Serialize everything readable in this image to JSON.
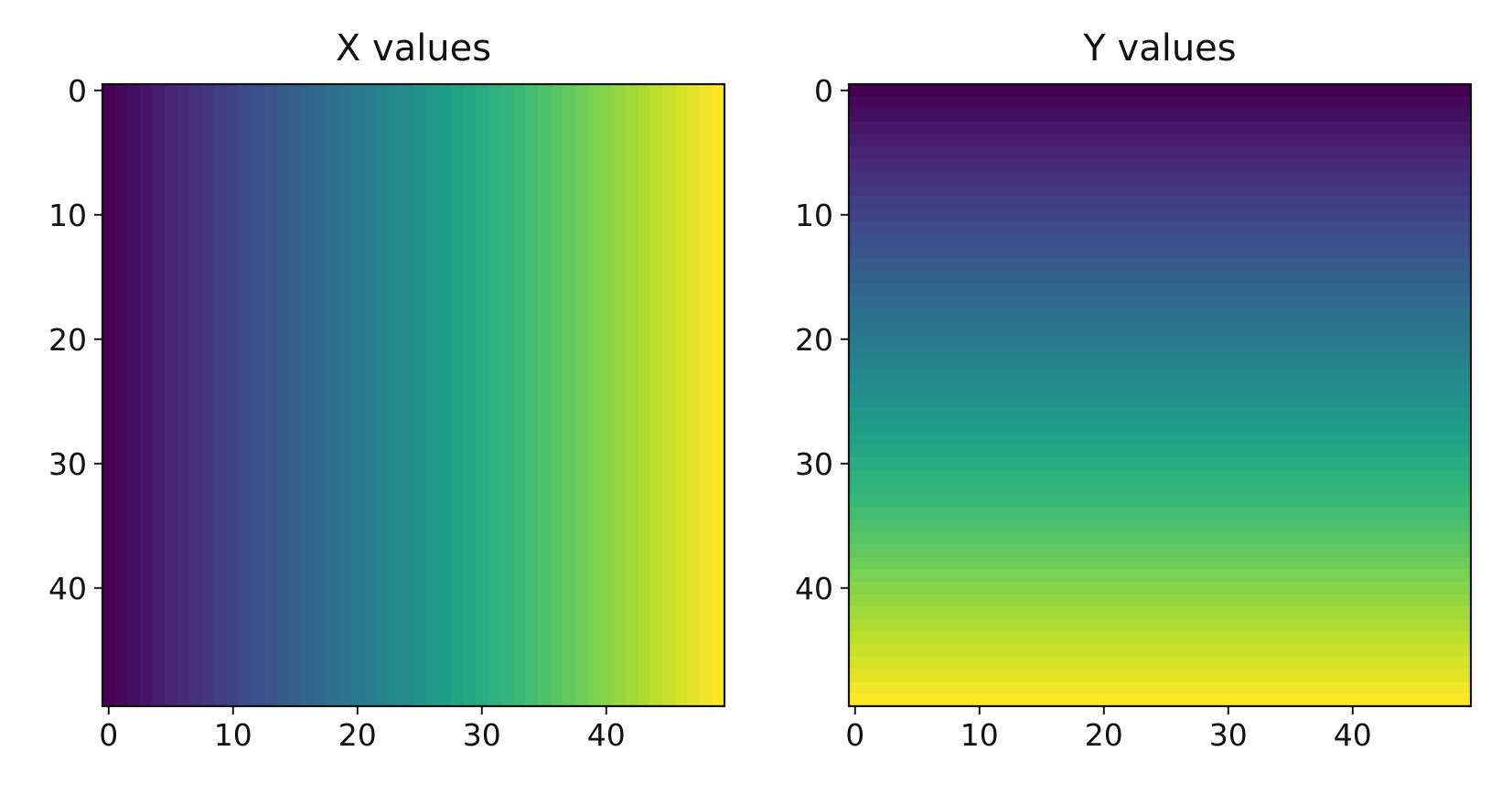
{
  "chart_data": [
    {
      "type": "heatmap",
      "title": "X values",
      "colormap": "viridis",
      "gradient_direction": "horizontal",
      "rows": 50,
      "cols": 50,
      "value_formula": "column index",
      "value_range": [
        0,
        49
      ],
      "xlim": [
        -0.5,
        49.5
      ],
      "ylim": [
        49.5,
        -0.5
      ],
      "xticks": [
        0,
        10,
        20,
        30,
        40
      ],
      "yticks": [
        0,
        10,
        20,
        30,
        40
      ],
      "xtick_labels": [
        "0",
        "10",
        "20",
        "30",
        "40"
      ],
      "ytick_labels": [
        "0",
        "10",
        "20",
        "30",
        "40"
      ],
      "y_inverted": true,
      "grid": false,
      "legend": "none"
    },
    {
      "type": "heatmap",
      "title": "Y values",
      "colormap": "viridis",
      "gradient_direction": "vertical",
      "rows": 50,
      "cols": 50,
      "value_formula": "row index",
      "value_range": [
        0,
        49
      ],
      "xlim": [
        -0.5,
        49.5
      ],
      "ylim": [
        49.5,
        -0.5
      ],
      "xticks": [
        0,
        10,
        20,
        30,
        40
      ],
      "yticks": [
        0,
        10,
        20,
        30,
        40
      ],
      "xtick_labels": [
        "0",
        "10",
        "20",
        "30",
        "40"
      ],
      "ytick_labels": [
        "0",
        "10",
        "20",
        "30",
        "40"
      ],
      "y_inverted": true,
      "grid": false,
      "legend": "none"
    }
  ],
  "colors": {
    "axis": "#111111",
    "background": "#ffffff",
    "viridis_stops": [
      "#440154",
      "#482878",
      "#3e4989",
      "#31688e",
      "#26828e",
      "#1f9e89",
      "#35b779",
      "#6ece58",
      "#b5de2b",
      "#fde725"
    ]
  }
}
